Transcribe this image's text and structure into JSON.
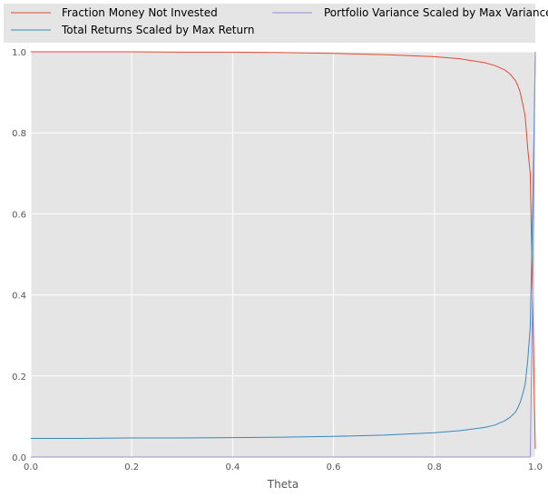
{
  "chart_data": {
    "type": "line",
    "title": "",
    "xlabel": "Theta",
    "ylabel": "",
    "xlim": [
      0,
      1
    ],
    "ylim": [
      0,
      1
    ],
    "x_ticks": [
      0.0,
      0.2,
      0.4,
      0.6,
      0.8,
      1.0
    ],
    "y_ticks": [
      0.0,
      0.2,
      0.4,
      0.6,
      0.8,
      1.0
    ],
    "x_tick_labels": [
      "0.0",
      "0.2",
      "0.4",
      "0.6",
      "0.8",
      "1.0"
    ],
    "y_tick_labels": [
      "0.0",
      "0.2",
      "0.4",
      "0.6",
      "0.8",
      "1.0"
    ],
    "grid": true,
    "background": "#e5e5e5",
    "legend_position": "top, outside plot, two columns",
    "series": [
      {
        "name": "Fraction Money Not Invested",
        "color": "#e24a33",
        "x": [
          0.0,
          0.1,
          0.2,
          0.3,
          0.4,
          0.5,
          0.6,
          0.7,
          0.8,
          0.85,
          0.9,
          0.92,
          0.94,
          0.95,
          0.96,
          0.965,
          0.97,
          0.975,
          0.98,
          0.985,
          0.99,
          0.993,
          0.996,
          0.998,
          1.0
        ],
        "y": [
          1.0,
          1.0,
          1.0,
          0.999,
          0.999,
          0.998,
          0.996,
          0.993,
          0.988,
          0.983,
          0.973,
          0.966,
          0.955,
          0.945,
          0.93,
          0.918,
          0.9,
          0.872,
          0.84,
          0.76,
          0.7,
          0.5,
          0.3,
          0.15,
          0.02
        ]
      },
      {
        "name": "Total Returns Scaled by Max Return",
        "color": "#348abd",
        "x": [
          0.0,
          0.1,
          0.2,
          0.3,
          0.4,
          0.5,
          0.6,
          0.7,
          0.8,
          0.85,
          0.9,
          0.92,
          0.94,
          0.95,
          0.96,
          0.965,
          0.97,
          0.975,
          0.98,
          0.985,
          0.99,
          0.993,
          0.996,
          0.998,
          1.0
        ],
        "y": [
          0.046,
          0.046,
          0.047,
          0.047,
          0.048,
          0.049,
          0.051,
          0.054,
          0.06,
          0.065,
          0.073,
          0.079,
          0.09,
          0.098,
          0.11,
          0.12,
          0.135,
          0.155,
          0.18,
          0.24,
          0.32,
          0.5,
          0.7,
          0.85,
          1.0
        ]
      },
      {
        "name": "Portfolio Variance Scaled by Max Variance",
        "color": "#988ed5",
        "x": [
          0.0,
          0.5,
          0.9,
          0.98,
          0.99,
          0.993,
          0.996,
          0.998,
          1.0
        ],
        "y": [
          0.0,
          0.0,
          0.0,
          0.0,
          0.0,
          0.25,
          0.55,
          0.8,
          1.0
        ]
      }
    ]
  }
}
